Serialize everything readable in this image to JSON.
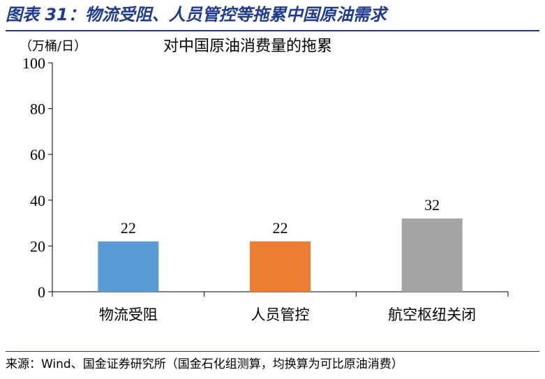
{
  "figure": {
    "caption": "图表 31：物流受阻、人员管控等拖累中国原油需求",
    "source": "来源：Wind、国金证券研究所（国金石化组测算，均换算为可比原油消费）"
  },
  "chart_data": {
    "type": "bar",
    "title": "对中国原油消费量的拖累",
    "ylabel": "（万桶/日）",
    "xlabel": "",
    "categories": [
      "物流受阻",
      "人员管控",
      "航空枢纽关闭"
    ],
    "values": [
      22,
      22,
      32
    ],
    "data_labels": [
      "22",
      "22",
      "32"
    ],
    "colors": [
      "#5b9bd5",
      "#ed7d31",
      "#a5a5a5"
    ],
    "ylim": [
      0,
      100
    ],
    "yticks": [
      0,
      20,
      40,
      60,
      80,
      100
    ],
    "ytick_labels": [
      "0",
      "20",
      "40",
      "60",
      "80",
      "100"
    ],
    "grid": false,
    "legend": "none"
  }
}
